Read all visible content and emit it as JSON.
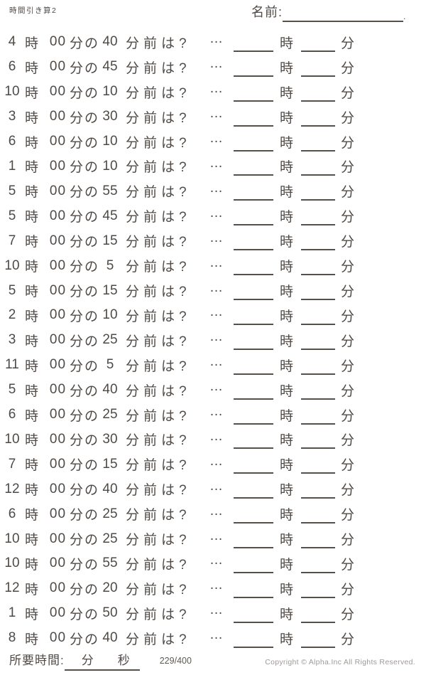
{
  "header": {
    "title": "時間引き算2",
    "name_label": "名前:",
    "name_line_dot": "."
  },
  "row_template": {
    "hour_unit": "時",
    "zero_minutes": "00",
    "of_label": "分の",
    "question_label": "分前は?",
    "ellipsis": "…",
    "answer_hour_unit": "時",
    "answer_minute_unit": "分"
  },
  "problems": [
    {
      "hour": "4",
      "minutes": "40"
    },
    {
      "hour": "6",
      "minutes": "45"
    },
    {
      "hour": "10",
      "minutes": "10"
    },
    {
      "hour": "3",
      "minutes": "30"
    },
    {
      "hour": "6",
      "minutes": "10"
    },
    {
      "hour": "1",
      "minutes": "10"
    },
    {
      "hour": "5",
      "minutes": "55"
    },
    {
      "hour": "5",
      "minutes": "45"
    },
    {
      "hour": "7",
      "minutes": "15"
    },
    {
      "hour": "10",
      "minutes": "5"
    },
    {
      "hour": "5",
      "minutes": "15"
    },
    {
      "hour": "2",
      "minutes": "10"
    },
    {
      "hour": "3",
      "minutes": "25"
    },
    {
      "hour": "11",
      "minutes": "5"
    },
    {
      "hour": "5",
      "minutes": "40"
    },
    {
      "hour": "6",
      "minutes": "25"
    },
    {
      "hour": "10",
      "minutes": "30"
    },
    {
      "hour": "7",
      "minutes": "15"
    },
    {
      "hour": "12",
      "minutes": "40"
    },
    {
      "hour": "6",
      "minutes": "25"
    },
    {
      "hour": "10",
      "minutes": "25"
    },
    {
      "hour": "10",
      "minutes": "55"
    },
    {
      "hour": "12",
      "minutes": "20"
    },
    {
      "hour": "1",
      "minutes": "50"
    },
    {
      "hour": "8",
      "minutes": "40"
    }
  ],
  "footer": {
    "elapsed_label": "所要時間:",
    "minutes_unit": "分",
    "seconds_unit": "秒",
    "page_number": "229/400",
    "copyright": "Copyright © Alpha.Inc All Rights Reserved."
  },
  "colors": {
    "text": "#4f4a46",
    "line": "#56504a",
    "copyright_text": "#9f9a97"
  }
}
